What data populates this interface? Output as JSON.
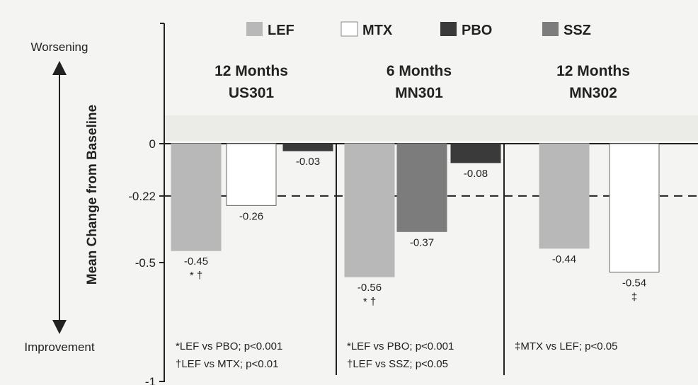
{
  "chart_data": {
    "type": "bar",
    "ylabel": "Mean Change from Baseline",
    "ylim": [
      -1,
      0
    ],
    "yticks": [
      {
        "value": 0,
        "label": "0"
      },
      {
        "value": -0.22,
        "label": "-0.22"
      },
      {
        "value": -0.5,
        "label": "-0.5"
      },
      {
        "value": -1,
        "label": "-1"
      }
    ],
    "reference_line": -0.22,
    "direction_labels": {
      "top": "Worsening",
      "bottom": "Improvement"
    },
    "legend": [
      {
        "name": "LEF",
        "color": "#b8b8b8"
      },
      {
        "name": "MTX",
        "color": "#ffffff"
      },
      {
        "name": "PBO",
        "color": "#3a3a3a"
      },
      {
        "name": "SSZ",
        "color": "#7c7c7c"
      }
    ],
    "groups": [
      {
        "title_line1": "12 Months",
        "title_line2": "US301",
        "bars": [
          {
            "series": "LEF",
            "value": -0.45,
            "label": "-0.45",
            "sig": "* †"
          },
          {
            "series": "MTX",
            "value": -0.26,
            "label": "-0.26",
            "sig": ""
          },
          {
            "series": "PBO",
            "value": -0.03,
            "label": "-0.03",
            "sig": ""
          }
        ],
        "footnotes": [
          "*LEF vs PBO; p<0.001",
          "†LEF vs MTX; p<0.01"
        ]
      },
      {
        "title_line1": "6 Months",
        "title_line2": "MN301",
        "bars": [
          {
            "series": "LEF",
            "value": -0.56,
            "label": "-0.56",
            "sig": "* †"
          },
          {
            "series": "SSZ",
            "value": -0.37,
            "label": "-0.37",
            "sig": ""
          },
          {
            "series": "PBO",
            "value": -0.08,
            "label": "-0.08",
            "sig": ""
          }
        ],
        "footnotes": [
          "*LEF vs PBO; p<0.001",
          "†LEF vs SSZ; p<0.05"
        ]
      },
      {
        "title_line1": "12 Months",
        "title_line2": "MN302",
        "bars": [
          {
            "series": "LEF",
            "value": -0.44,
            "label": "-0.44",
            "sig": ""
          },
          {
            "series": "MTX",
            "value": -0.54,
            "label": "-0.54",
            "sig": "‡"
          }
        ],
        "footnotes": [
          "‡MTX vs LEF; p<0.05"
        ]
      }
    ]
  }
}
